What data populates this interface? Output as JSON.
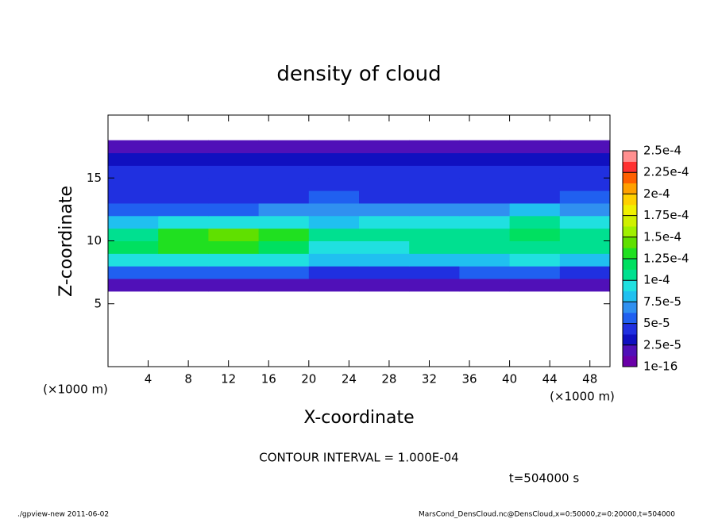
{
  "chart_data": {
    "type": "heatmap",
    "title": "density of cloud",
    "x_label": "X-coordinate",
    "y_label": "Z-coordinate",
    "x_unit": "(×1000 m)",
    "y_unit": "(×1000 m)",
    "xlim": [
      0,
      50
    ],
    "ylim": [
      0,
      20
    ],
    "xticks": [
      4,
      8,
      12,
      16,
      20,
      24,
      28,
      32,
      36,
      40,
      44,
      48
    ],
    "yticks": [
      5,
      10,
      15
    ],
    "x": [
      2.5,
      7.5,
      12.5,
      17.5,
      22.5,
      27.5,
      32.5,
      37.5,
      42.5,
      47.5
    ],
    "y": [
      6.5,
      7.5,
      8.5,
      9.5,
      10.5,
      11.5,
      12.5,
      13.5,
      14.5,
      15.5,
      16.5,
      17.5
    ],
    "values": [
      [
        1.5e-05,
        1.5e-05,
        1.5e-05,
        1.5e-05,
        1.5e-05,
        1.5e-05,
        1.5e-05,
        1.5e-05,
        1.5e-05,
        1.5e-05
      ],
      [
        5.5e-05,
        5.5e-05,
        5.5e-05,
        5.5e-05,
        5e-05,
        5e-05,
        5e-05,
        5.5e-05,
        5.5e-05,
        5e-05
      ],
      [
        9e-05,
        9.5e-05,
        0.0001,
        9.5e-05,
        8.5e-05,
        8e-05,
        8e-05,
        8.5e-05,
        9e-05,
        8.5e-05
      ],
      [
        0.000115,
        0.00013,
        0.000135,
        0.000125,
        0.0001,
        9.5e-05,
        0.000105,
        0.00011,
        0.00011,
        0.000105
      ],
      [
        0.00011,
        0.00013,
        0.00014,
        0.00013,
        0.000105,
        0.00011,
        0.00011,
        0.00011,
        0.000115,
        0.00011
      ],
      [
        8e-05,
        9e-05,
        9.5e-05,
        9e-05,
        8e-05,
        9.5e-05,
        0.0001,
        0.0001,
        0.000105,
        9e-05
      ],
      [
        6e-05,
        5.5e-05,
        6e-05,
        6.5e-05,
        7e-05,
        7.5e-05,
        7e-05,
        6.5e-05,
        8e-05,
        7e-05
      ],
      [
        5e-05,
        4.8e-05,
        4.5e-05,
        5e-05,
        5.5e-05,
        4.8e-05,
        5e-05,
        4.8e-05,
        5e-05,
        5.5e-05
      ],
      [
        4.8e-05,
        4.5e-05,
        4.2e-05,
        4.8e-05,
        4.5e-05,
        4.3e-05,
        4.5e-05,
        4.2e-05,
        4.5e-05,
        4.8e-05
      ],
      [
        4.5e-05,
        4.2e-05,
        4e-05,
        4.5e-05,
        4.3e-05,
        4e-05,
        4.2e-05,
        4e-05,
        4.2e-05,
        4.5e-05
      ],
      [
        3e-05,
        3e-05,
        2.8e-05,
        3e-05,
        3e-05,
        3e-05,
        3e-05,
        2.8e-05,
        2.8e-05,
        3e-05
      ],
      [
        1.5e-05,
        1.5e-05,
        1.5e-05,
        1.5e-05,
        1.5e-05,
        1.5e-05,
        1.5e-05,
        1.5e-05,
        1.5e-05,
        1.5e-05
      ]
    ],
    "colors": [
      "#6a00a8",
      "#5010b8",
      "#1010c0",
      "#2030e0",
      "#2060f0",
      "#3090f0",
      "#20c0f0",
      "#20e0e0",
      "#00e090",
      "#00e060",
      "#20e020",
      "#60e000",
      "#a0f000",
      "#d0f000",
      "#f0f000",
      "#ffd000",
      "#ffa000",
      "#ff6000",
      "#ff3030",
      "#ff9090"
    ],
    "colorbar_ticks": [
      {
        "value": 1e-16,
        "label": "1e-16"
      },
      {
        "value": 2.5e-05,
        "label": "2.5e-5"
      },
      {
        "value": 5e-05,
        "label": "5e-5"
      },
      {
        "value": 7.5e-05,
        "label": "7.5e-5"
      },
      {
        "value": 0.0001,
        "label": "1e-4"
      },
      {
        "value": 0.000125,
        "label": "1.25e-4"
      },
      {
        "value": 0.00015,
        "label": "1.5e-4"
      },
      {
        "value": 0.000175,
        "label": "1.75e-4"
      },
      {
        "value": 0.0002,
        "label": "2e-4"
      },
      {
        "value": 0.000225,
        "label": "2.25e-4"
      },
      {
        "value": 0.00025,
        "label": "2.5e-4"
      }
    ],
    "contour_note": "CONTOUR INTERVAL = 1.000E-04",
    "time_label": "t=504000 s",
    "footer_left": "./gpview-new  2011-06-02",
    "footer_right": "MarsCond_DensCloud.nc@DensCloud,x=0:50000,z=0:20000,t=504000"
  }
}
